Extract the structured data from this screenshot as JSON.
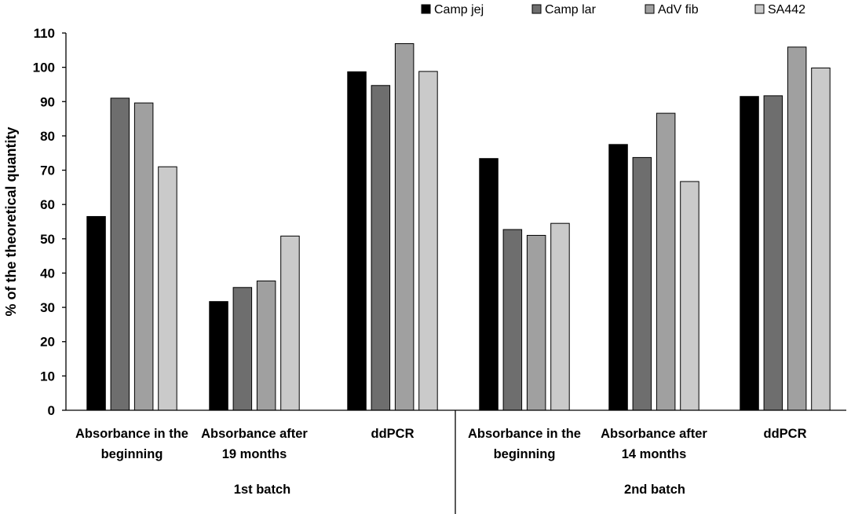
{
  "chart_data": {
    "type": "bar",
    "title": "",
    "xlabel": "",
    "ylabel": "% of the theoretical quantity",
    "ylim": [
      0,
      110
    ],
    "yticks": [
      0,
      10,
      20,
      30,
      40,
      50,
      60,
      70,
      80,
      90,
      100,
      110
    ],
    "grid": false,
    "legend_position": "top-right",
    "categories": [
      [
        "Absorbance in the",
        "beginning"
      ],
      [
        "Absorbance after",
        "19 months"
      ],
      [
        "ddPCR"
      ],
      [
        "Absorbance in the",
        "beginning"
      ],
      [
        "Absorbance after",
        "14 months"
      ],
      [
        "ddPCR"
      ]
    ],
    "groups": [
      {
        "label": "1st batch",
        "span": [
          0,
          2
        ]
      },
      {
        "label": "2nd batch",
        "span": [
          3,
          5
        ]
      }
    ],
    "series": [
      {
        "name": "Camp jej",
        "color": "#000000",
        "values": [
          56.5,
          31.7,
          98.7,
          73.4,
          77.5,
          91.5
        ]
      },
      {
        "name": "Camp lar",
        "color": "#6e6e6e",
        "values": [
          91.0,
          35.8,
          94.7,
          52.7,
          73.7,
          91.7
        ]
      },
      {
        "name": "AdV fib",
        "color": "#a0a0a0",
        "values": [
          89.6,
          37.7,
          106.9,
          51.0,
          86.6,
          105.9
        ]
      },
      {
        "name": "SA442",
        "color": "#cacaca",
        "values": [
          71.0,
          50.8,
          98.8,
          54.5,
          66.7,
          99.8
        ]
      }
    ]
  }
}
